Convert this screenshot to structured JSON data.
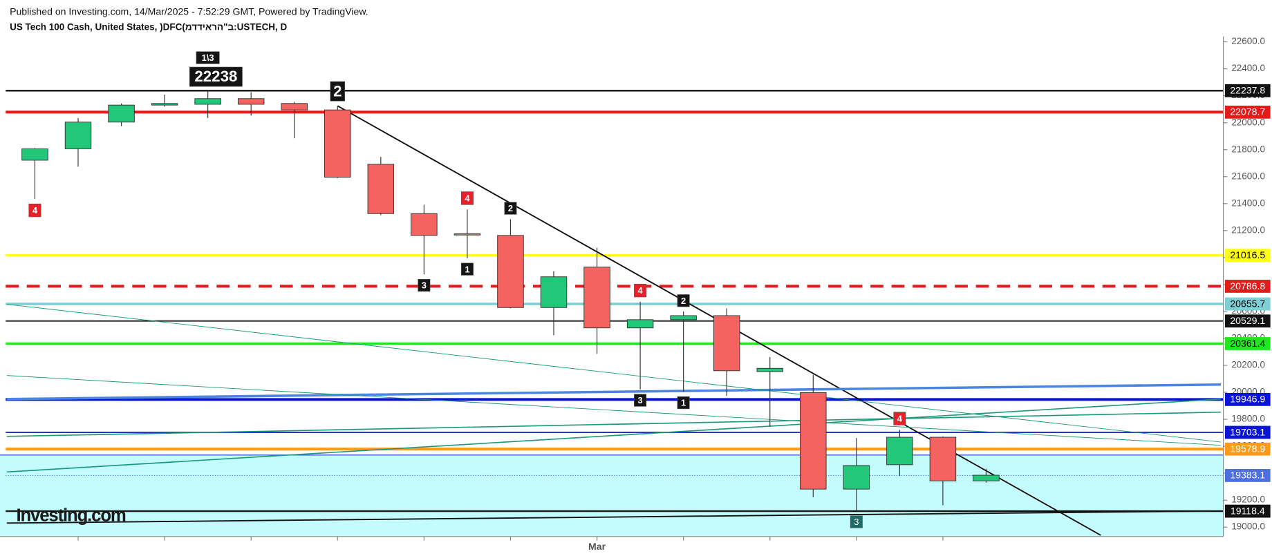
{
  "chart_data": {
    "type": "candlestick",
    "note": "Published on Investing.com, 14/Mar/2025 - 7:52:29 GMT, Powered by TradingView.",
    "title": "US Tech 100 Cash, United States, )DFC(ב\"הראידדמ:USTECH, D",
    "watermark": "Investing.com",
    "categories": [
      null,
      null,
      null,
      null,
      null,
      null,
      null,
      null,
      null,
      null,
      null,
      null,
      null,
      "Mar",
      null,
      null,
      null,
      null,
      null,
      null,
      null,
      null,
      null
    ],
    "open": [
      21722,
      21807,
      22005,
      22131,
      22137,
      22179,
      22143,
      22095,
      21692,
      21326,
      21176,
      21164,
      20629,
      20929,
      20478,
      20539,
      20569,
      20154,
      19998,
      19282,
      19463,
      19667,
      19343
    ],
    "high": [
      21812,
      22035,
      22143,
      22209,
      22233,
      22227,
      22155,
      22125,
      21747,
      21392,
      21356,
      21284,
      20899,
      21073,
      20671,
      20599,
      20623,
      20262,
      20130,
      19661,
      19721,
      19673,
      19433
    ],
    "low": [
      21434,
      21674,
      21975,
      22119,
      22035,
      22053,
      21885,
      21590,
      21314,
      20875,
      20995,
      20623,
      20424,
      20286,
      20022,
      20004,
      19974,
      19745,
      19222,
      19120,
      19379,
      19162,
      19331
    ],
    "close": [
      21806,
      22005,
      22131,
      22143,
      22179,
      22137,
      22095,
      21596,
      21326,
      21164,
      21170,
      20629,
      20857,
      20478,
      20539,
      20569,
      20160,
      20178,
      19282,
      19457,
      19667,
      19343,
      19385
    ],
    "up_color": "#22c77a",
    "down_color": "#f4635f",
    "ylim": [
      18930,
      22640
    ],
    "yticks": [
      {
        "value": 19000,
        "label": "19000.0"
      },
      {
        "value": 19200,
        "label": "19200.0"
      },
      {
        "value": 19400,
        "label": "19400.0"
      },
      {
        "value": 19600,
        "label": "19600.0"
      },
      {
        "value": 19800,
        "label": "19800.0"
      },
      {
        "value": 20000,
        "label": "20000.0"
      },
      {
        "value": 20200,
        "label": "20200.0"
      },
      {
        "value": 20400,
        "label": "20400.0"
      },
      {
        "value": 20600,
        "label": "20600.0"
      },
      {
        "value": 20800,
        "label": "20800.0"
      },
      {
        "value": 21000,
        "label": "21000.0"
      },
      {
        "value": 21200,
        "label": "21200.0"
      },
      {
        "value": 21400,
        "label": "21400.0"
      },
      {
        "value": 21600,
        "label": "21600.0"
      },
      {
        "value": 21800,
        "label": "21800.0"
      },
      {
        "value": 22000,
        "label": "22000.0"
      },
      {
        "value": 22200,
        "label": "22200.0"
      },
      {
        "value": 22400,
        "label": "22400.0"
      },
      {
        "value": 22600,
        "label": "22600.0"
      }
    ],
    "zone": {
      "top": 19535,
      "color": "#c4fbfd",
      "border": "#3b5bd6"
    },
    "levels": [
      {
        "value": 22237.8,
        "color": "#111111",
        "width": 2,
        "dash": "none",
        "text_color": "#ffffff"
      },
      {
        "value": 22078.7,
        "color": "#e31b1b",
        "width": 3.5,
        "dash": "none",
        "text_color": "#ffffff"
      },
      {
        "value": 21016.5,
        "color": "#ffff1a",
        "width": 3,
        "dash": "none",
        "text_color": "#000000"
      },
      {
        "value": 20786.8,
        "color": "#e31b1b",
        "width": 3.5,
        "dash": "16 10",
        "text_color": "#ffffff"
      },
      {
        "value": 20655.7,
        "color": "#7fcfd6",
        "width": 3,
        "dash": "none",
        "text_color": "#000000"
      },
      {
        "value": 20529.1,
        "color": "#111111",
        "width": 1.5,
        "dash": "none",
        "text_color": "#ffffff"
      },
      {
        "value": 20361.4,
        "color": "#22e61e",
        "width": 3,
        "dash": "none",
        "text_color": "#000000"
      },
      {
        "value": 19946.9,
        "color": "#0a14d6",
        "width": 3.5,
        "dash": "none",
        "text_color": "#ffffff"
      },
      {
        "value": 19703.1,
        "color": "#0a14d6",
        "width": 1.5,
        "dash": "none",
        "text_color": "#ffffff"
      },
      {
        "value": 19578.9,
        "color": "#ff9a1a",
        "width": 3.5,
        "dash": "none",
        "text_color": "#ffffff"
      },
      {
        "value": 19383.1,
        "color": "#4c6ee0",
        "width": 1,
        "dash": "1 2",
        "text_color": "#ffffff"
      },
      {
        "value": 19118.4,
        "color": "#111111",
        "width": 2,
        "dash": "none",
        "text_color": "#ffffff"
      }
    ],
    "trendlines": [
      {
        "x": [
          7,
          24.65
        ],
        "y": [
          22125,
          18940
        ],
        "color": "#111111",
        "width": 1.6
      },
      {
        "x": [
          -0.65,
          27.43
        ],
        "y": [
          19950,
          20058
        ],
        "color": "#4a86e0",
        "width": 3
      },
      {
        "x": [
          -0.65,
          27.43
        ],
        "y": [
          19409,
          19950
        ],
        "color": "#1a9a7a",
        "width": 1.4
      },
      {
        "x": [
          -0.65,
          27.43
        ],
        "y": [
          19673,
          19853
        ],
        "color": "#1a9a7a",
        "width": 1.4
      },
      {
        "x": [
          -0.65,
          27.43
        ],
        "y": [
          20653,
          19631
        ],
        "color": "#1a9a7a",
        "width": 0.8
      },
      {
        "x": [
          -0.65,
          27.43
        ],
        "y": [
          20125,
          19607
        ],
        "color": "#1a9a7a",
        "width": 0.8
      },
      {
        "x": [
          -0.65,
          27.43
        ],
        "y": [
          19030,
          19120
        ],
        "color": "#111111",
        "width": 1.6
      }
    ],
    "annotations": [
      {
        "text": "4",
        "candle": 0,
        "pos": "below",
        "style": "red"
      },
      {
        "text": "22238",
        "candle": 4,
        "pos": "above",
        "style": "big"
      },
      {
        "text": "1\\3",
        "candle": 4,
        "pos": "above",
        "style": "black"
      },
      {
        "text": "2",
        "candle": 7,
        "pos": "above",
        "style": "big"
      },
      {
        "text": "3",
        "candle": 9,
        "pos": "below",
        "style": "black"
      },
      {
        "text": "4",
        "candle": 10,
        "pos": "above",
        "style": "red"
      },
      {
        "text": "1",
        "candle": 10,
        "pos": "below",
        "style": "black"
      },
      {
        "text": "2",
        "candle": 11,
        "pos": "above",
        "style": "black"
      },
      {
        "text": "4",
        "candle": 14,
        "pos": "above",
        "style": "red"
      },
      {
        "text": "3",
        "candle": 14,
        "pos": "below",
        "style": "black"
      },
      {
        "text": "2",
        "candle": 15,
        "pos": "above",
        "style": "black"
      },
      {
        "text": "1",
        "candle": 15,
        "pos": "below",
        "style": "black"
      },
      {
        "text": "3",
        "candle": 19,
        "pos": "below",
        "style": "teal"
      },
      {
        "text": "4",
        "candle": 20,
        "pos": "above",
        "style": "red"
      }
    ]
  }
}
